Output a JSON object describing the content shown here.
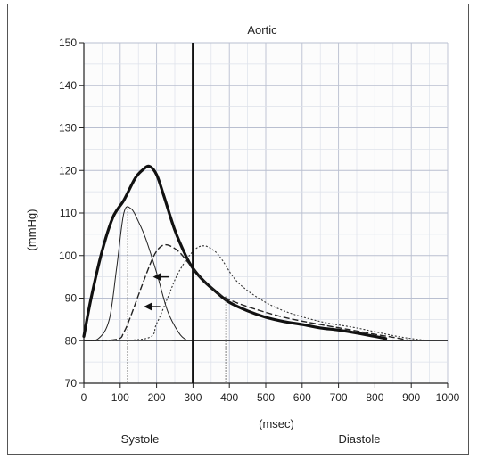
{
  "chart_data": {
    "type": "line",
    "title": "Aortic",
    "xlabel": "(msec)",
    "ylabel": "(mmHg)",
    "xlim": [
      0,
      1000
    ],
    "ylim": [
      70,
      150
    ],
    "xticks": [
      0,
      100,
      200,
      300,
      400,
      500,
      600,
      700,
      800,
      900,
      1000
    ],
    "yticks": [
      70,
      80,
      90,
      100,
      110,
      120,
      130,
      140,
      150
    ],
    "grid": true,
    "annotations": {
      "systole_label": "Systole",
      "diastole_label": "Diastole",
      "divider_x": 300,
      "marker_lines_x": [
        120,
        390
      ],
      "arrows": [
        {
          "from": [
            235,
            95
          ],
          "to": [
            190,
            95
          ]
        },
        {
          "from": [
            210,
            88
          ],
          "to": [
            165,
            88
          ]
        }
      ]
    },
    "series": [
      {
        "style": "thick-solid",
        "x": [
          0,
          20,
          50,
          80,
          110,
          140,
          160,
          180,
          200,
          220,
          250,
          280,
          300,
          330,
          370,
          400,
          450,
          500,
          550,
          600,
          650,
          700,
          750,
          800,
          830
        ],
        "y": [
          81,
          90,
          101,
          109,
          113,
          118,
          120,
          121,
          119,
          114,
          106,
          100,
          97,
          94,
          91,
          89,
          87,
          85.5,
          84.5,
          83.8,
          83,
          82.5,
          81.8,
          81,
          80.5
        ]
      },
      {
        "style": "thin-solid",
        "x": [
          0,
          40,
          70,
          90,
          110,
          130,
          150,
          170,
          200,
          230,
          260,
          280,
          300,
          1000
        ],
        "y": [
          80,
          80.5,
          85,
          97,
          110,
          111,
          108,
          104,
          96,
          87,
          82,
          80.3,
          80,
          80
        ]
      },
      {
        "style": "dashed",
        "x": [
          0,
          90,
          110,
          130,
          160,
          190,
          210,
          230,
          260,
          290,
          330,
          380,
          450,
          550,
          650,
          750,
          800,
          850,
          900
        ],
        "y": [
          80,
          80.3,
          82,
          86,
          93,
          99.5,
          102,
          102.5,
          101,
          98,
          94,
          90.5,
          88,
          85.5,
          83.8,
          82.3,
          81.5,
          80.8,
          80
        ]
      },
      {
        "style": "dotted",
        "x": [
          0,
          170,
          200,
          230,
          260,
          300,
          330,
          360,
          380,
          420,
          480,
          550,
          650,
          750,
          850,
          900,
          950
        ],
        "y": [
          80,
          80.5,
          84,
          90,
          96,
          101,
          102.3,
          101,
          99,
          94,
          90,
          87,
          84.5,
          83,
          81.2,
          80.5,
          80
        ]
      },
      {
        "style": "baseline",
        "x": [
          0,
          1000
        ],
        "y": [
          80,
          80
        ]
      }
    ]
  }
}
